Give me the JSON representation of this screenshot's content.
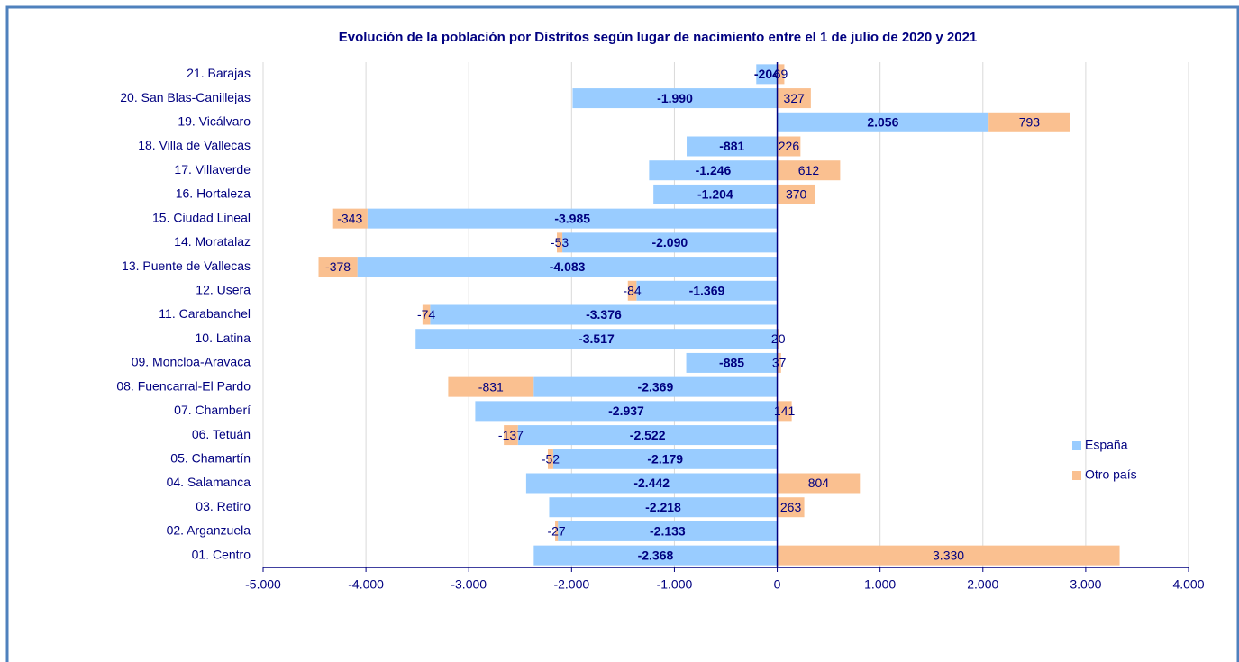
{
  "chart_data": {
    "type": "bar",
    "orientation": "horizontal",
    "stacked": true,
    "title": "Evolución de la población por Distritos según lugar de nacimiento entre el 1 de julio de 2020 y 2021",
    "categories": [
      "21. Barajas",
      "20. San Blas-Canillejas",
      "19. Vicálvaro",
      "18. Villa de Vallecas",
      "17. Villaverde",
      "16. Hortaleza",
      "15. Ciudad Lineal",
      "14. Moratalaz",
      "13. Puente de Vallecas",
      "12. Usera",
      "11. Carabanchel",
      "10. Latina",
      "09. Moncloa-Aravaca",
      "08. Fuencarral-El Pardo",
      "07. Chamberí",
      "06. Tetuán",
      "05. Chamartín",
      "04. Salamanca",
      "03. Retiro",
      "02. Arganzuela",
      "01. Centro"
    ],
    "series": [
      {
        "name": "España",
        "color": "#99ccff",
        "values": [
          -204,
          -1990,
          2056,
          -881,
          -1246,
          -1204,
          -3985,
          -2090,
          -4083,
          -1369,
          -3376,
          -3517,
          -885,
          -2369,
          -2937,
          -2522,
          -2179,
          -2442,
          -2218,
          -2133,
          -2368
        ],
        "value_labels": [
          "-204",
          "-1.990",
          "2.056",
          "-881",
          "-1.246",
          "-1.204",
          "-3.985",
          "-2.090",
          "-4.083",
          "-1.369",
          "-3.376",
          "-3.517",
          "-885",
          "-2.369",
          "-2.937",
          "-2.522",
          "-2.179",
          "-2.442",
          "-2.218",
          "-2.133",
          "-2.368"
        ]
      },
      {
        "name": "Otro país",
        "color": "#fac090",
        "values": [
          69,
          327,
          793,
          226,
          612,
          370,
          -343,
          -53,
          -378,
          -84,
          -74,
          20,
          37,
          -831,
          141,
          -137,
          -52,
          804,
          263,
          -27,
          3330
        ],
        "value_labels": [
          "69",
          "327",
          "793",
          "226",
          "612",
          "370",
          "-343",
          "-53",
          "-378",
          "-84",
          "-74",
          "20",
          "37",
          "-831",
          "141",
          "-137",
          "-52",
          "804",
          "263",
          "-27",
          "3.330"
        ]
      }
    ],
    "xlim": [
      -5000,
      4000
    ],
    "xticks": [
      {
        "value": -5000,
        "label": "-5.000"
      },
      {
        "value": -4000,
        "label": "-4.000"
      },
      {
        "value": -3000,
        "label": "-3.000"
      },
      {
        "value": -2000,
        "label": "-2.000"
      },
      {
        "value": -1000,
        "label": "-1.000"
      },
      0,
      {
        "value": 1000,
        "label": "1.000"
      },
      {
        "value": 2000,
        "label": "2.000"
      },
      {
        "value": 3000,
        "label": "3.000"
      },
      {
        "value": 4000,
        "label": "4.000"
      }
    ],
    "grid": true,
    "legend": "right"
  }
}
